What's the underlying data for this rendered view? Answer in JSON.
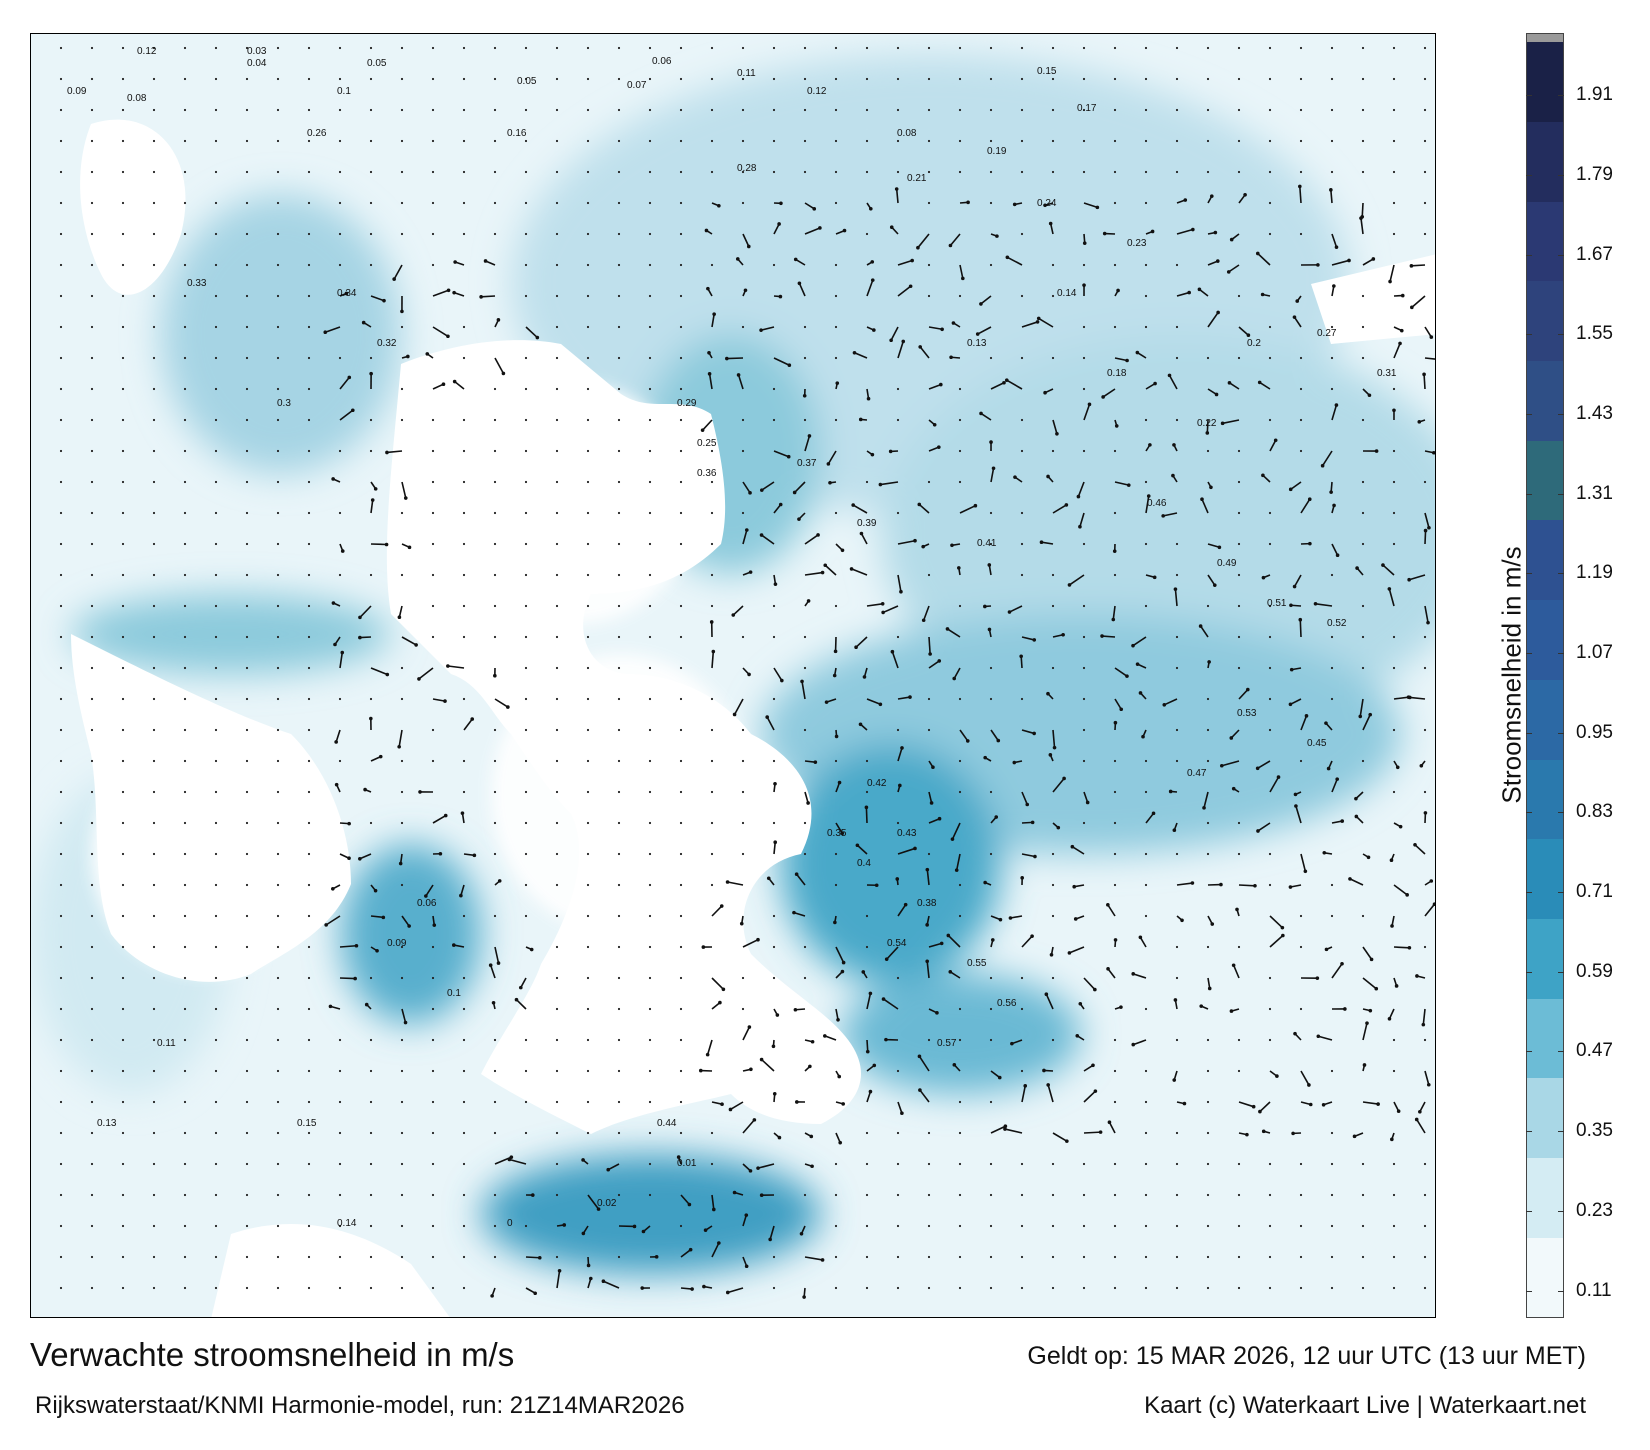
{
  "map": {
    "title": "Verwachte stroomsnelheid in m/s",
    "valid_time": "Geldt op: 15 MAR 2026, 12 uur UTC (13 uur MET)",
    "model_run": "Rijkswaterstaat/KNMI Harmonie-model, run: 21Z14MAR2026",
    "credit": "Kaart (c) Waterkaart Live | Waterkaart.net"
  },
  "colorbar": {
    "title": "Stroomsnelheid in m/s",
    "ticks": [
      "0.11",
      "0.23",
      "0.35",
      "0.47",
      "0.59",
      "0.71",
      "0.83",
      "0.95",
      "1.07",
      "1.19",
      "1.31",
      "1.43",
      "1.55",
      "1.67",
      "1.79",
      "1.91"
    ],
    "colors": [
      "#f2f9fb",
      "#d4ecf3",
      "#a9d7e6",
      "#6cbcd6",
      "#3ea3c6",
      "#2a8cb8",
      "#2a79ad",
      "#2c69a5",
      "#2d5b9c",
      "#2e5191",
      "#2e6a7a",
      "#2f4f86",
      "#2e437c",
      "#2b3973",
      "#232d5e",
      "#1a2147"
    ]
  },
  "labels": [
    {
      "v": "0.12"
    },
    {
      "v": "0.03"
    },
    {
      "v": "0.04"
    },
    {
      "v": "0.05"
    },
    {
      "v": "0.09"
    },
    {
      "v": "0.08"
    },
    {
      "v": "0.1"
    },
    {
      "v": "0.05"
    },
    {
      "v": "0.07"
    },
    {
      "v": "0.06"
    },
    {
      "v": "0.11"
    },
    {
      "v": "0.12"
    },
    {
      "v": "0.08"
    },
    {
      "v": "0.15"
    },
    {
      "v": "0.17"
    },
    {
      "v": "0.26"
    },
    {
      "v": "0.16"
    },
    {
      "v": "0.28"
    },
    {
      "v": "0.21"
    },
    {
      "v": "0.19"
    },
    {
      "v": "0.24"
    },
    {
      "v": "0.23"
    },
    {
      "v": "0.14"
    },
    {
      "v": "0.13"
    },
    {
      "v": "0.18"
    },
    {
      "v": "0.22"
    },
    {
      "v": "0.2"
    },
    {
      "v": "0.27"
    },
    {
      "v": "0.31"
    },
    {
      "v": "0.33"
    },
    {
      "v": "0.34"
    },
    {
      "v": "0.32"
    },
    {
      "v": "0.3"
    },
    {
      "v": "0.29"
    },
    {
      "v": "0.25"
    },
    {
      "v": "0.36"
    },
    {
      "v": "0.37"
    },
    {
      "v": "0.39"
    },
    {
      "v": "0.41"
    },
    {
      "v": "0.46"
    },
    {
      "v": "0.49"
    },
    {
      "v": "0.51"
    },
    {
      "v": "0.52"
    },
    {
      "v": "0.53"
    },
    {
      "v": "0.47"
    },
    {
      "v": "0.45"
    },
    {
      "v": "0.42"
    },
    {
      "v": "0.35"
    },
    {
      "v": "0.4"
    },
    {
      "v": "0.43"
    },
    {
      "v": "0.38"
    },
    {
      "v": "0.54"
    },
    {
      "v": "0.55"
    },
    {
      "v": "0.56"
    },
    {
      "v": "0.57"
    },
    {
      "v": "0.44"
    },
    {
      "v": "0.01"
    },
    {
      "v": "0.02"
    },
    {
      "v": "0"
    },
    {
      "v": "0.06"
    },
    {
      "v": "0.09"
    },
    {
      "v": "0.1"
    },
    {
      "v": "0.11"
    },
    {
      "v": "0.13"
    },
    {
      "v": "0.14"
    },
    {
      "v": "0.15"
    }
  ]
}
